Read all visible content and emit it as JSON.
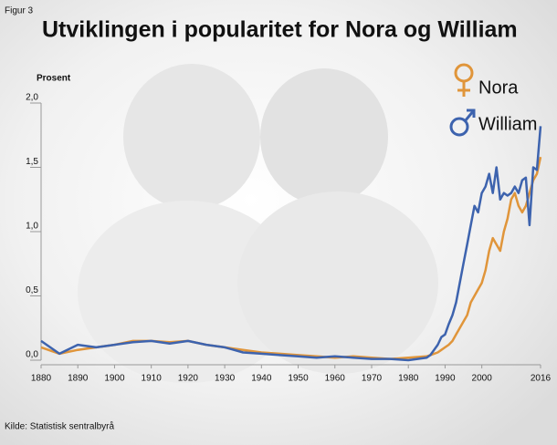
{
  "chart_data": {
    "type": "line",
    "figure_label": "Figur 3",
    "title": "Utviklingen i  popularitet for Nora og William",
    "y_label": "Prosent",
    "source": "Kilde: Statistisk sentralbyrå",
    "x": [
      1880,
      1885,
      1890,
      1895,
      1900,
      1905,
      1910,
      1915,
      1920,
      1925,
      1930,
      1935,
      1940,
      1945,
      1950,
      1955,
      1960,
      1965,
      1970,
      1975,
      1980,
      1985,
      1986,
      1987,
      1988,
      1989,
      1990,
      1991,
      1992,
      1993,
      1994,
      1995,
      1996,
      1997,
      1998,
      1999,
      2000,
      2001,
      2002,
      2003,
      2004,
      2005,
      2006,
      2007,
      2008,
      2009,
      2010,
      2011,
      2012,
      2013,
      2014,
      2015,
      2016
    ],
    "series": [
      {
        "name": "Nora",
        "color": "#e0953a",
        "values": [
          0.1,
          0.05,
          0.08,
          0.1,
          0.12,
          0.15,
          0.15,
          0.14,
          0.15,
          0.12,
          0.1,
          0.08,
          0.06,
          0.05,
          0.04,
          0.03,
          0.02,
          0.03,
          0.02,
          0.01,
          0.02,
          0.03,
          0.04,
          0.05,
          0.06,
          0.08,
          0.1,
          0.12,
          0.15,
          0.2,
          0.25,
          0.3,
          0.35,
          0.45,
          0.5,
          0.55,
          0.6,
          0.7,
          0.85,
          0.95,
          0.9,
          0.85,
          1.0,
          1.1,
          1.25,
          1.3,
          1.2,
          1.15,
          1.2,
          1.3,
          1.4,
          1.45,
          1.58
        ]
      },
      {
        "name": "William",
        "color": "#3d63ae",
        "values": [
          0.15,
          0.05,
          0.12,
          0.1,
          0.12,
          0.14,
          0.15,
          0.13,
          0.15,
          0.12,
          0.1,
          0.06,
          0.05,
          0.04,
          0.03,
          0.02,
          0.03,
          0.02,
          0.01,
          0.01,
          0.0,
          0.02,
          0.04,
          0.08,
          0.12,
          0.18,
          0.2,
          0.28,
          0.35,
          0.45,
          0.6,
          0.75,
          0.9,
          1.05,
          1.2,
          1.15,
          1.3,
          1.35,
          1.45,
          1.3,
          1.5,
          1.25,
          1.3,
          1.28,
          1.3,
          1.35,
          1.3,
          1.4,
          1.42,
          1.05,
          1.5,
          1.48,
          1.82
        ]
      }
    ],
    "xlim": [
      1880,
      2016
    ],
    "xticks": [
      1880,
      1890,
      1900,
      1910,
      1920,
      1930,
      1940,
      1950,
      1960,
      1970,
      1980,
      1990,
      2000,
      2016
    ],
    "ylim": [
      0,
      2
    ],
    "yticks": [
      {
        "value": 0,
        "label": "0,0"
      },
      {
        "value": 0.5,
        "label": "0,5"
      },
      {
        "value": 1,
        "label": "1,0"
      },
      {
        "value": 1.5,
        "label": "1,5"
      },
      {
        "value": 2,
        "label": "2,0"
      }
    ]
  }
}
